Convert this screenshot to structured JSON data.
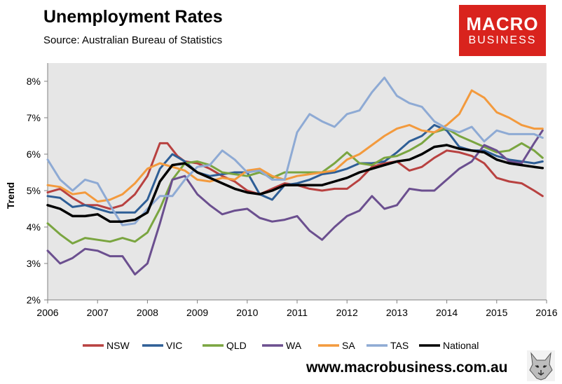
{
  "header": {
    "title": "Unemployment Rates",
    "source": "Source: Australian Bureau of Statistics"
  },
  "logo": {
    "line1": "MACRO",
    "line2": "BUSINESS",
    "bg_color": "#d9231d"
  },
  "footer": {
    "url": "www.macrobusiness.com.au",
    "mascot_icon": "wolf-icon"
  },
  "chart_data": {
    "type": "line",
    "title": "Unemployment Rates",
    "xlabel": "",
    "ylabel": "Trend",
    "xlim": [
      2006,
      2016
    ],
    "ylim": [
      2,
      8.5
    ],
    "yticks": [
      2,
      3,
      4,
      5,
      6,
      7,
      8
    ],
    "ytick_labels": [
      "2%",
      "3%",
      "4%",
      "5%",
      "6%",
      "7%",
      "8%"
    ],
    "xticks": [
      2006,
      2007,
      2008,
      2009,
      2010,
      2011,
      2012,
      2013,
      2014,
      2015,
      2016
    ],
    "xtick_labels": [
      "2006",
      "2007",
      "2008",
      "2009",
      "2010",
      "2011",
      "2012",
      "2013",
      "2014",
      "2015",
      "2016"
    ],
    "grid": false,
    "plot_bg": "#e6e6e6",
    "legend_position": "bottom",
    "series": [
      {
        "name": "NSW",
        "color": "#b84140",
        "points": [
          [
            2006,
            4.95
          ],
          [
            2006.25,
            5.05
          ],
          [
            2006.5,
            4.8
          ],
          [
            2006.75,
            4.6
          ],
          [
            2007,
            4.6
          ],
          [
            2007.25,
            4.5
          ],
          [
            2007.5,
            4.6
          ],
          [
            2007.75,
            4.9
          ],
          [
            2008,
            5.4
          ],
          [
            2008.25,
            6.3
          ],
          [
            2008.4,
            6.3
          ],
          [
            2008.6,
            5.95
          ],
          [
            2008.75,
            5.8
          ],
          [
            2009,
            5.75
          ],
          [
            2009.25,
            5.6
          ],
          [
            2009.5,
            5.4
          ],
          [
            2009.75,
            5.25
          ],
          [
            2010,
            5.0
          ],
          [
            2010.25,
            4.9
          ],
          [
            2010.5,
            5.05
          ],
          [
            2010.75,
            5.2
          ],
          [
            2011,
            5.15
          ],
          [
            2011.25,
            5.05
          ],
          [
            2011.5,
            5.0
          ],
          [
            2011.75,
            5.05
          ],
          [
            2012,
            5.05
          ],
          [
            2012.25,
            5.3
          ],
          [
            2012.5,
            5.65
          ],
          [
            2012.75,
            5.75
          ],
          [
            2013,
            5.8
          ],
          [
            2013.25,
            5.55
          ],
          [
            2013.5,
            5.65
          ],
          [
            2013.75,
            5.9
          ],
          [
            2014,
            6.1
          ],
          [
            2014.25,
            6.05
          ],
          [
            2014.5,
            5.95
          ],
          [
            2014.75,
            5.75
          ],
          [
            2015,
            5.35
          ],
          [
            2015.25,
            5.25
          ],
          [
            2015.5,
            5.2
          ],
          [
            2015.75,
            5.0
          ],
          [
            2015.92,
            4.85
          ]
        ]
      },
      {
        "name": "VIC",
        "color": "#2e5e96",
        "points": [
          [
            2006,
            4.85
          ],
          [
            2006.25,
            4.8
          ],
          [
            2006.5,
            4.55
          ],
          [
            2006.75,
            4.6
          ],
          [
            2007,
            4.5
          ],
          [
            2007.25,
            4.4
          ],
          [
            2007.5,
            4.4
          ],
          [
            2007.75,
            4.4
          ],
          [
            2008,
            4.75
          ],
          [
            2008.25,
            5.6
          ],
          [
            2008.5,
            6.0
          ],
          [
            2008.75,
            5.8
          ],
          [
            2009,
            5.5
          ],
          [
            2009.25,
            5.4
          ],
          [
            2009.5,
            5.45
          ],
          [
            2009.75,
            5.5
          ],
          [
            2010,
            5.5
          ],
          [
            2010.25,
            4.9
          ],
          [
            2010.5,
            4.75
          ],
          [
            2010.75,
            5.15
          ],
          [
            2011,
            5.2
          ],
          [
            2011.25,
            5.3
          ],
          [
            2011.5,
            5.45
          ],
          [
            2011.75,
            5.5
          ],
          [
            2012,
            5.6
          ],
          [
            2012.25,
            5.75
          ],
          [
            2012.5,
            5.75
          ],
          [
            2012.75,
            5.8
          ],
          [
            2013,
            6.05
          ],
          [
            2013.25,
            6.35
          ],
          [
            2013.5,
            6.5
          ],
          [
            2013.75,
            6.8
          ],
          [
            2014,
            6.65
          ],
          [
            2014.25,
            6.2
          ],
          [
            2014.5,
            6.1
          ],
          [
            2014.75,
            6.1
          ],
          [
            2015,
            5.95
          ],
          [
            2015.25,
            5.85
          ],
          [
            2015.5,
            5.8
          ],
          [
            2015.75,
            5.75
          ],
          [
            2015.92,
            5.8
          ]
        ]
      },
      {
        "name": "QLD",
        "color": "#7aa540",
        "points": [
          [
            2006,
            4.1
          ],
          [
            2006.25,
            3.8
          ],
          [
            2006.5,
            3.55
          ],
          [
            2006.75,
            3.7
          ],
          [
            2007,
            3.65
          ],
          [
            2007.25,
            3.6
          ],
          [
            2007.5,
            3.7
          ],
          [
            2007.75,
            3.6
          ],
          [
            2008,
            3.85
          ],
          [
            2008.25,
            4.5
          ],
          [
            2008.5,
            5.3
          ],
          [
            2008.75,
            5.75
          ],
          [
            2009,
            5.8
          ],
          [
            2009.25,
            5.7
          ],
          [
            2009.5,
            5.5
          ],
          [
            2009.75,
            5.45
          ],
          [
            2010,
            5.4
          ],
          [
            2010.25,
            5.5
          ],
          [
            2010.5,
            5.35
          ],
          [
            2010.75,
            5.5
          ],
          [
            2011,
            5.5
          ],
          [
            2011.25,
            5.5
          ],
          [
            2011.5,
            5.5
          ],
          [
            2011.75,
            5.75
          ],
          [
            2012,
            6.05
          ],
          [
            2012.25,
            5.75
          ],
          [
            2012.5,
            5.7
          ],
          [
            2012.75,
            5.9
          ],
          [
            2013,
            5.95
          ],
          [
            2013.25,
            6.1
          ],
          [
            2013.5,
            6.3
          ],
          [
            2013.75,
            6.6
          ],
          [
            2014,
            6.7
          ],
          [
            2014.25,
            6.5
          ],
          [
            2014.5,
            6.35
          ],
          [
            2014.75,
            6.2
          ],
          [
            2015,
            6.05
          ],
          [
            2015.25,
            6.1
          ],
          [
            2015.5,
            6.3
          ],
          [
            2015.75,
            6.1
          ],
          [
            2015.92,
            5.9
          ]
        ]
      },
      {
        "name": "WA",
        "color": "#6b4f8f",
        "points": [
          [
            2006,
            3.35
          ],
          [
            2006.25,
            3.0
          ],
          [
            2006.5,
            3.15
          ],
          [
            2006.75,
            3.4
          ],
          [
            2007,
            3.35
          ],
          [
            2007.25,
            3.2
          ],
          [
            2007.5,
            3.2
          ],
          [
            2007.75,
            2.7
          ],
          [
            2008,
            3.0
          ],
          [
            2008.25,
            4.1
          ],
          [
            2008.5,
            5.3
          ],
          [
            2008.75,
            5.4
          ],
          [
            2009,
            4.9
          ],
          [
            2009.25,
            4.6
          ],
          [
            2009.5,
            4.35
          ],
          [
            2009.75,
            4.45
          ],
          [
            2010,
            4.5
          ],
          [
            2010.25,
            4.25
          ],
          [
            2010.5,
            4.15
          ],
          [
            2010.75,
            4.2
          ],
          [
            2011,
            4.3
          ],
          [
            2011.25,
            3.9
          ],
          [
            2011.5,
            3.65
          ],
          [
            2011.75,
            4.0
          ],
          [
            2012,
            4.3
          ],
          [
            2012.25,
            4.45
          ],
          [
            2012.5,
            4.85
          ],
          [
            2012.75,
            4.5
          ],
          [
            2013,
            4.6
          ],
          [
            2013.25,
            5.05
          ],
          [
            2013.5,
            5.0
          ],
          [
            2013.75,
            5.0
          ],
          [
            2014,
            5.3
          ],
          [
            2014.25,
            5.6
          ],
          [
            2014.5,
            5.8
          ],
          [
            2014.75,
            6.25
          ],
          [
            2015,
            6.1
          ],
          [
            2015.25,
            5.8
          ],
          [
            2015.5,
            5.75
          ],
          [
            2015.75,
            6.3
          ],
          [
            2015.92,
            6.65
          ]
        ]
      },
      {
        "name": "SA",
        "color": "#f39a3d",
        "points": [
          [
            2006,
            5.15
          ],
          [
            2006.25,
            5.1
          ],
          [
            2006.5,
            4.9
          ],
          [
            2006.75,
            4.95
          ],
          [
            2007,
            4.7
          ],
          [
            2007.25,
            4.75
          ],
          [
            2007.5,
            4.9
          ],
          [
            2007.75,
            5.2
          ],
          [
            2008,
            5.6
          ],
          [
            2008.25,
            5.75
          ],
          [
            2008.5,
            5.65
          ],
          [
            2008.75,
            5.55
          ],
          [
            2009,
            5.3
          ],
          [
            2009.25,
            5.25
          ],
          [
            2009.5,
            5.35
          ],
          [
            2009.75,
            5.3
          ],
          [
            2010,
            5.55
          ],
          [
            2010.25,
            5.6
          ],
          [
            2010.5,
            5.4
          ],
          [
            2010.75,
            5.3
          ],
          [
            2011,
            5.4
          ],
          [
            2011.25,
            5.45
          ],
          [
            2011.5,
            5.5
          ],
          [
            2011.75,
            5.55
          ],
          [
            2012,
            5.85
          ],
          [
            2012.25,
            6.0
          ],
          [
            2012.5,
            6.25
          ],
          [
            2012.75,
            6.5
          ],
          [
            2013,
            6.7
          ],
          [
            2013.25,
            6.8
          ],
          [
            2013.5,
            6.65
          ],
          [
            2013.75,
            6.6
          ],
          [
            2014,
            6.8
          ],
          [
            2014.25,
            7.1
          ],
          [
            2014.5,
            7.75
          ],
          [
            2014.75,
            7.55
          ],
          [
            2015,
            7.15
          ],
          [
            2015.25,
            7.0
          ],
          [
            2015.5,
            6.8
          ],
          [
            2015.75,
            6.7
          ],
          [
            2015.92,
            6.7
          ]
        ]
      },
      {
        "name": "TAS",
        "color": "#8eaad4",
        "points": [
          [
            2006,
            5.85
          ],
          [
            2006.25,
            5.3
          ],
          [
            2006.5,
            5.0
          ],
          [
            2006.75,
            5.3
          ],
          [
            2007,
            5.2
          ],
          [
            2007.25,
            4.6
          ],
          [
            2007.5,
            4.05
          ],
          [
            2007.75,
            4.1
          ],
          [
            2008,
            4.5
          ],
          [
            2008.25,
            4.85
          ],
          [
            2008.5,
            4.85
          ],
          [
            2008.75,
            5.3
          ],
          [
            2009,
            5.65
          ],
          [
            2009.25,
            5.7
          ],
          [
            2009.5,
            6.1
          ],
          [
            2009.75,
            5.85
          ],
          [
            2010,
            5.5
          ],
          [
            2010.25,
            5.55
          ],
          [
            2010.5,
            5.3
          ],
          [
            2010.75,
            5.3
          ],
          [
            2011,
            6.6
          ],
          [
            2011.25,
            7.1
          ],
          [
            2011.5,
            6.9
          ],
          [
            2011.75,
            6.75
          ],
          [
            2012,
            7.1
          ],
          [
            2012.25,
            7.2
          ],
          [
            2012.5,
            7.7
          ],
          [
            2012.75,
            8.1
          ],
          [
            2013,
            7.6
          ],
          [
            2013.25,
            7.4
          ],
          [
            2013.5,
            7.3
          ],
          [
            2013.75,
            6.9
          ],
          [
            2014,
            6.7
          ],
          [
            2014.25,
            6.6
          ],
          [
            2014.5,
            6.75
          ],
          [
            2014.75,
            6.35
          ],
          [
            2015,
            6.65
          ],
          [
            2015.25,
            6.55
          ],
          [
            2015.5,
            6.55
          ],
          [
            2015.75,
            6.55
          ],
          [
            2015.92,
            6.45
          ]
        ]
      },
      {
        "name": "National",
        "color": "#000000",
        "points": [
          [
            2006,
            4.6
          ],
          [
            2006.25,
            4.5
          ],
          [
            2006.5,
            4.3
          ],
          [
            2006.75,
            4.3
          ],
          [
            2007,
            4.35
          ],
          [
            2007.25,
            4.15
          ],
          [
            2007.5,
            4.15
          ],
          [
            2007.75,
            4.2
          ],
          [
            2008,
            4.4
          ],
          [
            2008.25,
            5.25
          ],
          [
            2008.5,
            5.7
          ],
          [
            2008.75,
            5.75
          ],
          [
            2009,
            5.5
          ],
          [
            2009.25,
            5.35
          ],
          [
            2009.5,
            5.2
          ],
          [
            2009.75,
            5.05
          ],
          [
            2010,
            4.95
          ],
          [
            2010.25,
            4.9
          ],
          [
            2010.5,
            5.0
          ],
          [
            2010.75,
            5.15
          ],
          [
            2011,
            5.15
          ],
          [
            2011.25,
            5.15
          ],
          [
            2011.5,
            5.15
          ],
          [
            2011.75,
            5.25
          ],
          [
            2012,
            5.35
          ],
          [
            2012.25,
            5.5
          ],
          [
            2012.5,
            5.6
          ],
          [
            2012.75,
            5.7
          ],
          [
            2013,
            5.8
          ],
          [
            2013.25,
            5.85
          ],
          [
            2013.5,
            6.0
          ],
          [
            2013.75,
            6.2
          ],
          [
            2014,
            6.25
          ],
          [
            2014.25,
            6.15
          ],
          [
            2014.5,
            6.1
          ],
          [
            2014.75,
            6.05
          ],
          [
            2015,
            5.85
          ],
          [
            2015.25,
            5.75
          ],
          [
            2015.5,
            5.7
          ],
          [
            2015.75,
            5.65
          ],
          [
            2015.92,
            5.62
          ]
        ]
      }
    ]
  }
}
